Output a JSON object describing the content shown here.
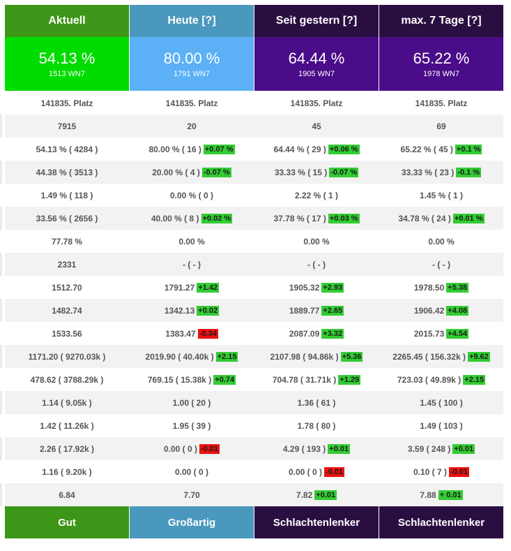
{
  "columns": [
    {
      "key": "aktuell",
      "header": "Aktuell",
      "value": "54.13 %",
      "wn7": "1513 WN7",
      "footer": "Gut",
      "colors": {
        "header": "#3d9617",
        "value": "#00dc00",
        "footer": "#3d9617"
      }
    },
    {
      "key": "heute",
      "header": "Heute [?]",
      "value": "80.00 %",
      "wn7": "1791 WN7",
      "footer": "Großartig",
      "colors": {
        "header": "#4a98bd",
        "value": "#5bb0f6",
        "footer": "#4a98bd"
      }
    },
    {
      "key": "seit_gestern",
      "header": "Seit gestern [?]",
      "value": "64.44 %",
      "wn7": "1905 WN7",
      "footer": "Schlachtenlenker",
      "colors": {
        "header": "#2a0e41",
        "value": "#4a0c88",
        "footer": "#2a0e41"
      }
    },
    {
      "key": "max_7_tage",
      "header": "max. 7 Tage [?]",
      "value": "65.22 %",
      "wn7": "1978 WN7",
      "footer": "Schlachtenlenker",
      "colors": {
        "header": "#2a0e41",
        "value": "#4a0c88",
        "footer": "#2a0e41"
      }
    }
  ],
  "rows": [
    [
      {
        "v": "141835. Platz"
      },
      {
        "v": "141835. Platz"
      },
      {
        "v": "141835. Platz"
      },
      {
        "v": "141835. Platz"
      }
    ],
    [
      {
        "v": "7915"
      },
      {
        "v": "20"
      },
      {
        "v": "45"
      },
      {
        "v": "69"
      }
    ],
    [
      {
        "v": "54.13 % ( 4284 )"
      },
      {
        "v": "80.00 % ( 16 )",
        "d": "+0.07 %",
        "s": "up"
      },
      {
        "v": "64.44 % ( 29 )",
        "d": "+0.06 %",
        "s": "up"
      },
      {
        "v": "65.22 % ( 45 )",
        "d": "+0.1 %",
        "s": "up"
      }
    ],
    [
      {
        "v": "44.38 % ( 3513 )"
      },
      {
        "v": "20.00 % ( 4 )",
        "d": "-0.07 %",
        "s": "up"
      },
      {
        "v": "33.33 % ( 15 )",
        "d": "-0.07 %",
        "s": "up"
      },
      {
        "v": "33.33 % ( 23 )",
        "d": "-0.1 %",
        "s": "up"
      }
    ],
    [
      {
        "v": "1.49 % ( 118 )"
      },
      {
        "v": "0.00 % ( 0 )"
      },
      {
        "v": "2.22 % ( 1 )"
      },
      {
        "v": "1.45 % ( 1 )"
      }
    ],
    [
      {
        "v": "33.56 % ( 2656 )"
      },
      {
        "v": "40.00 % ( 8 )",
        "d": "+0.02 %",
        "s": "up"
      },
      {
        "v": "37.78 % ( 17 )",
        "d": "+0.03 %",
        "s": "up"
      },
      {
        "v": "34.78 % ( 24 )",
        "d": "+0.01 %",
        "s": "up"
      }
    ],
    [
      {
        "v": "77.78 %"
      },
      {
        "v": "0.00 %"
      },
      {
        "v": "0.00 %"
      },
      {
        "v": "0.00 %"
      }
    ],
    [
      {
        "v": "2331"
      },
      {
        "v": "- ( - )"
      },
      {
        "v": "- ( - )"
      },
      {
        "v": "- ( - )"
      }
    ],
    [
      {
        "v": "1512.70"
      },
      {
        "v": "1791.27",
        "d": "+1.42",
        "s": "up"
      },
      {
        "v": "1905.32",
        "d": "+2.93",
        "s": "up"
      },
      {
        "v": "1978.50",
        "d": "+5.38",
        "s": "up"
      }
    ],
    [
      {
        "v": "1482.74"
      },
      {
        "v": "1342.13",
        "d": "+0.02",
        "s": "up"
      },
      {
        "v": "1889.77",
        "d": "+2.65",
        "s": "up"
      },
      {
        "v": "1906.42",
        "d": "+4.08",
        "s": "up"
      }
    ],
    [
      {
        "v": "1533.56"
      },
      {
        "v": "1383.47",
        "d": "-0.34",
        "s": "down"
      },
      {
        "v": "2087.09",
        "d": "+3.32",
        "s": "up"
      },
      {
        "v": "2015.73",
        "d": "+4.54",
        "s": "up"
      }
    ],
    [
      {
        "v": "1171.20 ( 9270.03k )"
      },
      {
        "v": "2019.90 ( 40.40k )",
        "d": "+2.15",
        "s": "up"
      },
      {
        "v": "2107.98 ( 94.86k )",
        "d": "+5.36",
        "s": "up"
      },
      {
        "v": "2265.45 ( 156.32k )",
        "d": "+9.62",
        "s": "up"
      }
    ],
    [
      {
        "v": "478.62 ( 3788.29k )"
      },
      {
        "v": "769.15 ( 15.38k )",
        "d": "+0.74",
        "s": "up"
      },
      {
        "v": "704.78 ( 31.71k )",
        "d": "+1.29",
        "s": "up"
      },
      {
        "v": "723.03 ( 49.89k )",
        "d": "+2.15",
        "s": "up"
      }
    ],
    [
      {
        "v": "1.14 ( 9.05k )"
      },
      {
        "v": "1.00 ( 20 )"
      },
      {
        "v": "1.36 ( 61 )"
      },
      {
        "v": "1.45 ( 100 )"
      }
    ],
    [
      {
        "v": "1.42 ( 11.26k )"
      },
      {
        "v": "1.95 ( 39 )"
      },
      {
        "v": "1.78 ( 80 )"
      },
      {
        "v": "1.49 ( 103 )"
      }
    ],
    [
      {
        "v": "2.26 ( 17.92k )"
      },
      {
        "v": "0.00 ( 0 )",
        "d": "-0.01",
        "s": "down"
      },
      {
        "v": "4.29 ( 193 )",
        "d": "+0.01",
        "s": "up"
      },
      {
        "v": "3.59 ( 248 )",
        "d": "+0.01",
        "s": "up"
      }
    ],
    [
      {
        "v": "1.16 ( 9.20k )"
      },
      {
        "v": "0.00 ( 0 )"
      },
      {
        "v": "0.00 ( 0 )",
        "d": "-0.01",
        "s": "down"
      },
      {
        "v": "0.10 ( 7 )",
        "d": "-0.01",
        "s": "down"
      }
    ],
    [
      {
        "v": "6.84"
      },
      {
        "v": "7.70"
      },
      {
        "v": "7.82",
        "d": "+0.01",
        "s": "up"
      },
      {
        "v": "7.88",
        "d": "+ 0.01",
        "s": "up"
      }
    ]
  ]
}
